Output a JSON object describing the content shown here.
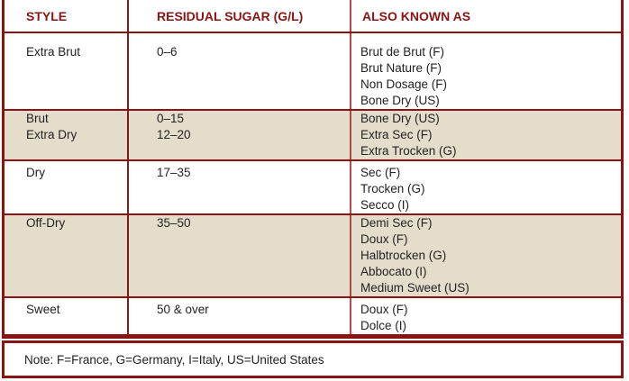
{
  "headers": [
    "STYLE",
    "RESIDUAL SUGAR (G/L)",
    "ALSO KNOWN AS"
  ],
  "rows": [
    {
      "style": [
        "Extra Brut"
      ],
      "sugar": [
        "0–6"
      ],
      "aka": [
        "Brut de Brut (F)",
        "Brut Nature (F)",
        "Non Dosage (F)",
        "Bone Dry (US)"
      ]
    },
    {
      "style": [
        "Brut",
        "Extra Dry"
      ],
      "sugar": [
        "0–15",
        "12–20"
      ],
      "aka": [
        "Bone Dry (US)",
        "Extra Sec (F)",
        "Extra Trocken (G)"
      ]
    },
    {
      "style": [
        "Dry"
      ],
      "sugar": [
        "17–35"
      ],
      "aka": [
        "Sec (F)",
        "Trocken (G)",
        "Secco (I)"
      ]
    },
    {
      "style": [
        "Off-Dry"
      ],
      "sugar": [
        "35–50"
      ],
      "aka": [
        "Demi Sec (F)",
        "Doux (F)",
        "Halbtrocken (G)",
        "Abbocato (I)",
        "Medium Sweet (US)"
      ]
    },
    {
      "style": [
        "Sweet"
      ],
      "sugar": [
        "50 & over"
      ],
      "aka": [
        "Doux (F)",
        "Dolce (I)"
      ]
    }
  ],
  "note": "Note: F=France, G=Germany, I=Italy, US=United States",
  "colors": {
    "border": "#8a1414",
    "shade": "#e4ddcb"
  }
}
